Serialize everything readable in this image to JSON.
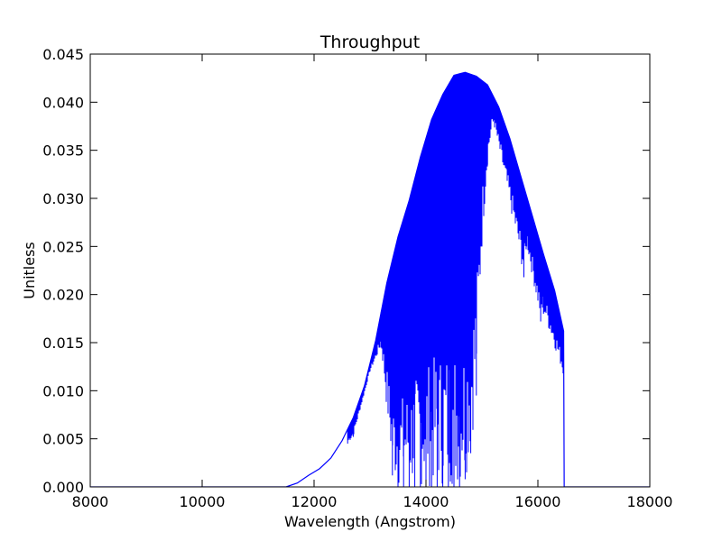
{
  "chart_data": {
    "type": "line",
    "title": "Throughput",
    "xlabel": "Wavelength (Angstrom)",
    "ylabel": "Unitless",
    "xlim": [
      8000,
      18000
    ],
    "ylim": [
      0.0,
      0.045
    ],
    "x_ticks": [
      8000,
      10000,
      12000,
      14000,
      16000,
      18000
    ],
    "x_tick_labels": [
      "8000",
      "10000",
      "12000",
      "14000",
      "16000",
      "18000"
    ],
    "y_ticks": [
      0.0,
      0.005,
      0.01,
      0.015,
      0.02,
      0.025,
      0.03,
      0.035,
      0.04,
      0.045
    ],
    "y_tick_labels": [
      "0.000",
      "0.005",
      "0.010",
      "0.015",
      "0.020",
      "0.025",
      "0.030",
      "0.035",
      "0.040",
      "0.045"
    ],
    "grid": false,
    "legend": "none",
    "series": [
      {
        "color": "#0000ff",
        "envelope": {
          "x": [
            8000,
            11500,
            11700,
            11900,
            12100,
            12300,
            12500,
            12700,
            12900,
            13100,
            13300,
            13500,
            13700,
            13900,
            14100,
            14300,
            14500,
            14700,
            14900,
            15100,
            15300,
            15500,
            15700,
            15900,
            16100,
            16300,
            16460,
            16470,
            18000
          ],
          "y": [
            0.0,
            0.0,
            0.0004,
            0.0012,
            0.0019,
            0.003,
            0.0048,
            0.0072,
            0.0105,
            0.0152,
            0.0212,
            0.026,
            0.0298,
            0.0343,
            0.0382,
            0.0408,
            0.0428,
            0.0431,
            0.0427,
            0.0418,
            0.0395,
            0.0362,
            0.0322,
            0.0282,
            0.0242,
            0.0204,
            0.0162,
            0.0,
            0.0
          ]
        },
        "absorption_dips": [
          {
            "x": 12600,
            "y": 0.0045
          },
          {
            "x": 12700,
            "y": 0.0052
          },
          {
            "x": 13000,
            "y": 0.012
          },
          {
            "x": 13200,
            "y": 0.0145
          },
          {
            "x": 13400,
            "y": 0.0012
          },
          {
            "x": 13500,
            "y": 0.0
          },
          {
            "x": 13600,
            "y": 0.0
          },
          {
            "x": 13700,
            "y": 0.0
          },
          {
            "x": 13800,
            "y": 0.0
          },
          {
            "x": 13900,
            "y": 0.0
          },
          {
            "x": 14000,
            "y": 0.0
          },
          {
            "x": 14100,
            "y": 0.0
          },
          {
            "x": 14200,
            "y": 0.0
          },
          {
            "x": 14300,
            "y": 0.0
          },
          {
            "x": 14400,
            "y": 0.0
          },
          {
            "x": 14500,
            "y": 0.0
          },
          {
            "x": 14600,
            "y": 0.0
          },
          {
            "x": 14700,
            "y": 0.0008
          },
          {
            "x": 14800,
            "y": 0.0035
          },
          {
            "x": 14900,
            "y": 0.0095
          },
          {
            "x": 15000,
            "y": 0.025
          },
          {
            "x": 15100,
            "y": 0.0335
          },
          {
            "x": 15200,
            "y": 0.038
          },
          {
            "x": 15750,
            "y": 0.0218
          },
          {
            "x": 15800,
            "y": 0.025
          },
          {
            "x": 16050,
            "y": 0.0172
          },
          {
            "x": 16100,
            "y": 0.018
          },
          {
            "x": 16450,
            "y": 0.0118
          }
        ]
      }
    ]
  }
}
